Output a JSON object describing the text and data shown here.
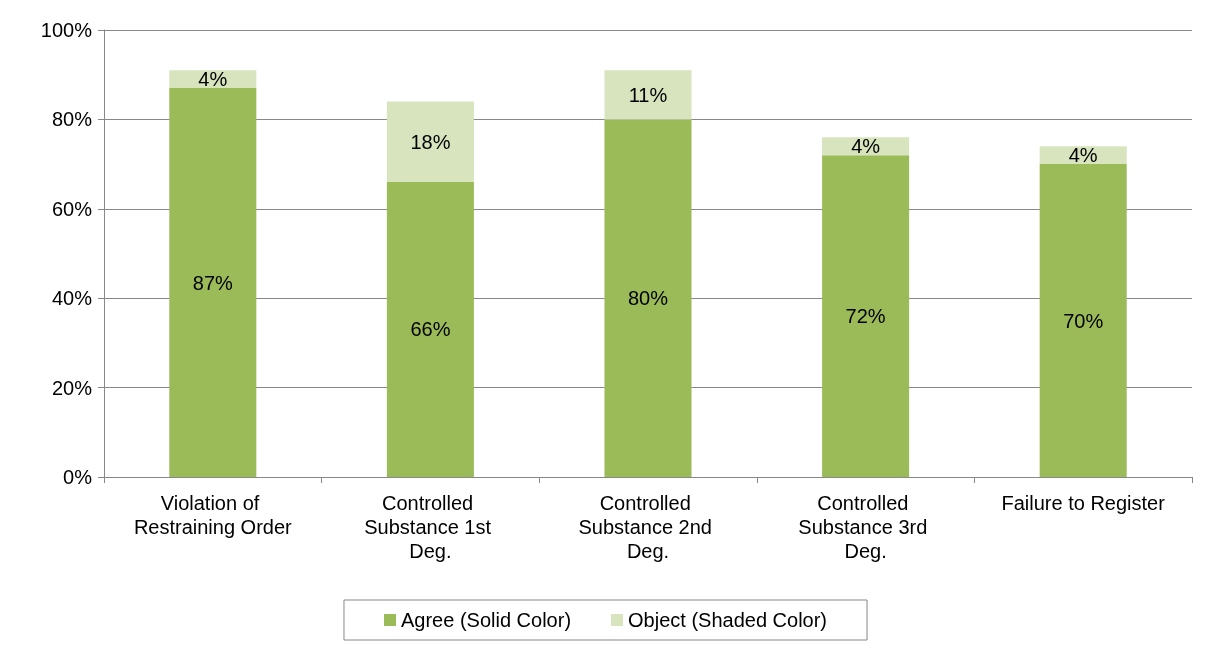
{
  "chart_data": {
    "type": "bar",
    "stacked": true,
    "categories": [
      "Violation of Restraining Order",
      "Controlled Substance 1st Deg.",
      "Controlled Substance 2nd Deg.",
      "Controlled Substance 3rd Deg.",
      "Failure to Register"
    ],
    "series": [
      {
        "name": "Agree (Solid Color)",
        "color": "#9bbb59",
        "values": [
          87,
          66,
          80,
          72,
          70
        ],
        "value_labels": [
          "87%",
          "66%",
          "80%",
          "72%",
          "70%"
        ]
      },
      {
        "name": "Object (Shaded Color)",
        "color": "#d7e4bd",
        "values": [
          4,
          18,
          11,
          4,
          4
        ],
        "value_labels": [
          "4%",
          "18%",
          "11%",
          "4%",
          "4%"
        ]
      }
    ],
    "ylim": [
      0,
      100
    ],
    "yticks": [
      {
        "value": 0,
        "label": "0%"
      },
      {
        "value": 20,
        "label": "20%"
      },
      {
        "value": 40,
        "label": "40%"
      },
      {
        "value": 60,
        "label": "60%"
      },
      {
        "value": 80,
        "label": "80%"
      },
      {
        "value": 100,
        "label": "100%"
      }
    ],
    "grid": "y",
    "legend": "bottom"
  }
}
